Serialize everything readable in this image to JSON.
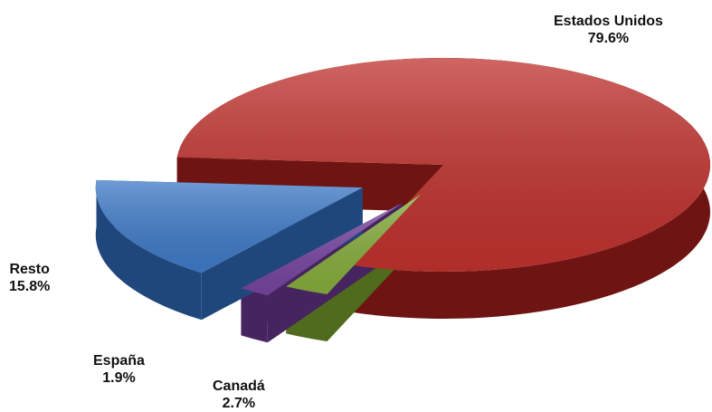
{
  "chart_data": {
    "type": "pie",
    "style": "3d-exploded",
    "slices": [
      {
        "name": "Estados Unidos",
        "label": "Estados Unidos",
        "value_label": "79.6%",
        "value": 79.6,
        "color": "#c0322e",
        "side_color": "#6e1412"
      },
      {
        "name": "Canadá",
        "label": "Canadá",
        "value_label": "2.7%",
        "value": 2.7,
        "color": "#86ad3c",
        "side_color": "#4f6b1d"
      },
      {
        "name": "España",
        "label": "España",
        "value_label": "1.9%",
        "value": 1.9,
        "color": "#7645a0",
        "side_color": "#46245f"
      },
      {
        "name": "Resto",
        "label": "Resto",
        "value_label": "15.8%",
        "value": 15.8,
        "color": "#3f7bc8",
        "side_color": "#20477c"
      }
    ]
  }
}
